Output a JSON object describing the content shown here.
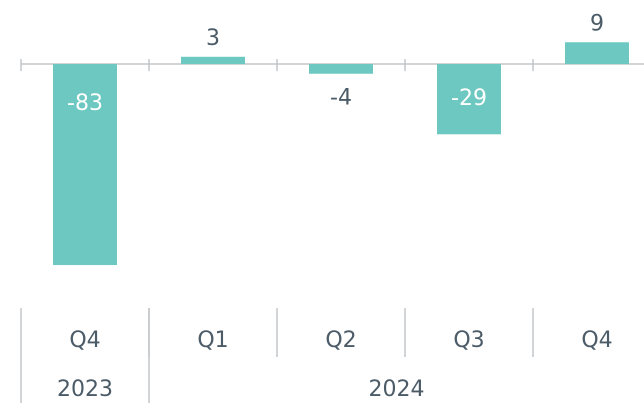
{
  "chart_data": {
    "type": "bar",
    "categories": [
      "Q4",
      "Q1",
      "Q2",
      "Q3",
      "Q4"
    ],
    "x_groups": [
      {
        "label": "2023",
        "count": 1
      },
      {
        "label": "2024",
        "count": 4
      }
    ],
    "values": [
      -83,
      3,
      -4,
      -29,
      9
    ],
    "color": "#6cc8c0",
    "ylim": [
      -90,
      12
    ]
  }
}
